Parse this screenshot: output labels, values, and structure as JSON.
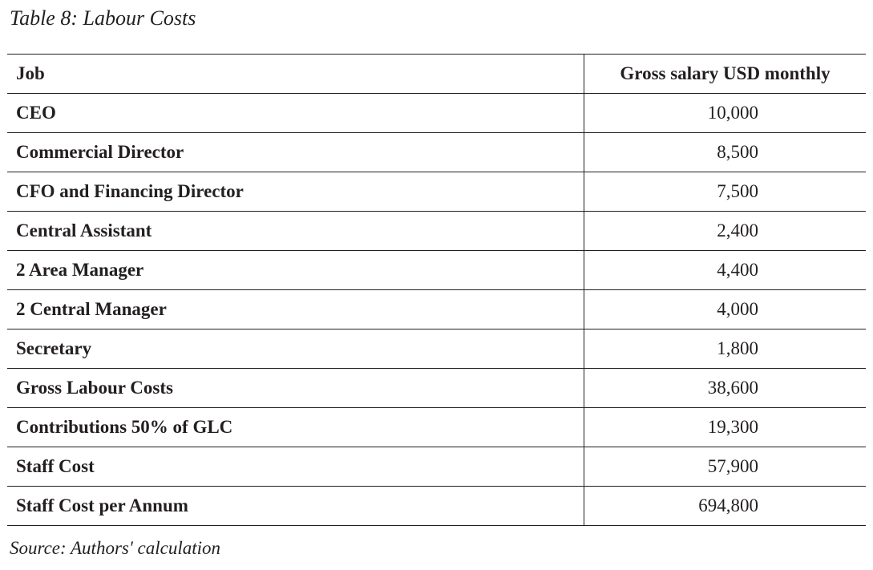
{
  "title": "Table 8: Labour Costs",
  "table": {
    "headers": [
      "Job",
      "Gross salary USD monthly"
    ],
    "rows": [
      [
        "CEO",
        "10,000"
      ],
      [
        "Commercial Director",
        "8,500"
      ],
      [
        "CFO and Financing Director",
        "7,500"
      ],
      [
        "Central Assistant",
        "2,400"
      ],
      [
        "2 Area Manager",
        "4,400"
      ],
      [
        "2 Central Manager",
        "4,000"
      ],
      [
        "Secretary",
        "1,800"
      ],
      [
        "Gross Labour Costs",
        "38,600"
      ],
      [
        "Contributions 50% of GLC",
        "19,300"
      ],
      [
        "Staff Cost",
        "57,900"
      ],
      [
        "Staff Cost per Annum",
        "694,800"
      ]
    ]
  },
  "source": "Source: Authors' calculation"
}
